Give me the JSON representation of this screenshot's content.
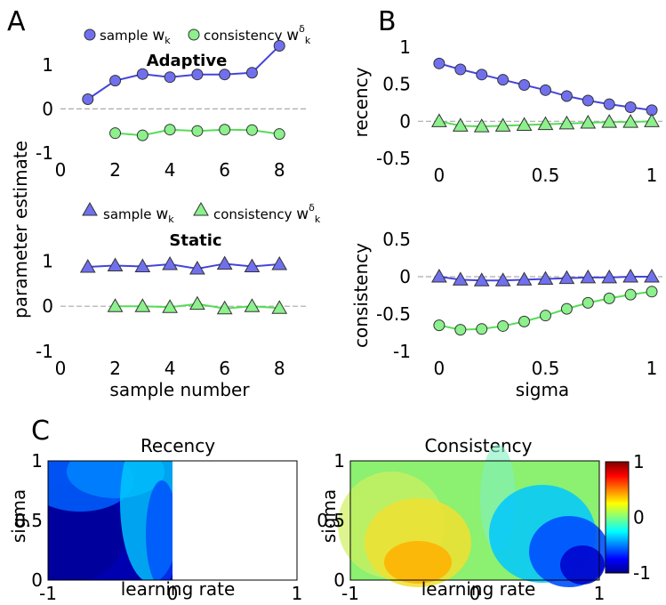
{
  "panel_letters": {
    "a": "A",
    "b": "B",
    "c": "C"
  },
  "legend": {
    "sample": "sample",
    "consistency": "consistency",
    "w_sym": "w",
    "k_sub": "k",
    "delta_sup": "δ"
  },
  "colors": {
    "sample_fill": "#7070ef",
    "sample_line": "#4444dd",
    "consistency_fill": "#8cf08c",
    "consistency_line": "#55dd55",
    "marker_edge": "#333333",
    "zero_line": "#aaaaaa"
  },
  "chart_data": [
    {
      "id": "A_top",
      "type": "line",
      "title": "Adaptive",
      "ylim": [
        -1,
        1.5
      ],
      "xlim": [
        0,
        9
      ],
      "yticks": [
        "-1",
        "0",
        "1"
      ],
      "xticks": [
        "0",
        "2",
        "4",
        "6",
        "8"
      ],
      "marker": "circle",
      "series": [
        {
          "name": "sample wk",
          "x": [
            1,
            2,
            3,
            4,
            5,
            6,
            7,
            8
          ],
          "y": [
            0.22,
            0.64,
            0.79,
            0.72,
            0.78,
            0.78,
            0.82,
            1.43
          ]
        },
        {
          "name": "consistency wδk",
          "x": [
            2,
            3,
            4,
            5,
            6,
            7,
            8
          ],
          "y": [
            -0.55,
            -0.6,
            -0.47,
            -0.5,
            -0.47,
            -0.48,
            -0.57
          ]
        }
      ]
    },
    {
      "id": "A_bottom",
      "type": "line",
      "title": "Static",
      "ylabel": "parameter estimate",
      "xlabel": "sample number",
      "ylim": [
        -1,
        1.5
      ],
      "xlim": [
        0,
        9
      ],
      "yticks": [
        "-1",
        "0",
        "1"
      ],
      "xticks": [
        "0",
        "2",
        "4",
        "6",
        "8"
      ],
      "marker": "triangle",
      "series": [
        {
          "name": "sample wk",
          "x": [
            1,
            2,
            3,
            4,
            5,
            6,
            7,
            8
          ],
          "y": [
            0.87,
            0.9,
            0.88,
            0.93,
            0.83,
            0.94,
            0.88,
            0.93
          ]
        },
        {
          "name": "consistency wδk",
          "x": [
            2,
            3,
            4,
            5,
            6,
            7,
            8
          ],
          "y": [
            0.0,
            0.0,
            -0.02,
            0.05,
            -0.05,
            0.0,
            -0.04
          ]
        }
      ]
    },
    {
      "id": "B_top",
      "type": "line",
      "ylabel": "recency",
      "xlim": [
        -0.1,
        1.05
      ],
      "ylim": [
        -0.5,
        1.0
      ],
      "yticks": [
        "-0.5",
        "0",
        "0.5",
        "1"
      ],
      "xticks": [
        "0",
        "0.5",
        "1"
      ],
      "series": [
        {
          "marker": "circle",
          "x": [
            0,
            0.1,
            0.2,
            0.3,
            0.4,
            0.5,
            0.6,
            0.7,
            0.8,
            0.9,
            1.0
          ],
          "y": [
            0.78,
            0.7,
            0.63,
            0.56,
            0.49,
            0.42,
            0.34,
            0.28,
            0.23,
            0.19,
            0.15
          ]
        },
        {
          "marker": "triangle",
          "x": [
            0,
            0.1,
            0.2,
            0.3,
            0.4,
            0.5,
            0.6,
            0.7,
            0.8,
            0.9,
            1.0
          ],
          "y": [
            0.0,
            -0.06,
            -0.07,
            -0.06,
            -0.05,
            -0.04,
            -0.03,
            -0.02,
            -0.01,
            -0.01,
            0.0
          ]
        }
      ]
    },
    {
      "id": "B_bottom",
      "type": "line",
      "ylabel": "consistency",
      "xlabel": "sigma",
      "xlim": [
        -0.1,
        1.05
      ],
      "ylim": [
        -1.0,
        0.5
      ],
      "yticks": [
        "-1",
        "-0.5",
        "0",
        "0.5"
      ],
      "xticks": [
        "0",
        "0.5",
        "1"
      ],
      "series": [
        {
          "marker": "triangle",
          "x": [
            0,
            0.1,
            0.2,
            0.3,
            0.4,
            0.5,
            0.6,
            0.7,
            0.8,
            0.9,
            1.0
          ],
          "y": [
            0.0,
            -0.04,
            -0.05,
            -0.05,
            -0.04,
            -0.03,
            -0.02,
            -0.01,
            -0.01,
            0.0,
            0.0
          ]
        },
        {
          "marker": "circle",
          "x": [
            0,
            0.1,
            0.2,
            0.3,
            0.4,
            0.5,
            0.6,
            0.7,
            0.8,
            0.9,
            1.0
          ],
          "y": [
            -0.65,
            -0.71,
            -0.7,
            -0.66,
            -0.6,
            -0.52,
            -0.43,
            -0.35,
            -0.29,
            -0.24,
            -0.2
          ]
        }
      ]
    },
    {
      "id": "C_left",
      "type": "heatmap",
      "title": "Recency",
      "xlabel": "learning rate",
      "ylabel": "sigma",
      "xlim": [
        -1,
        1
      ],
      "ylim": [
        0,
        1
      ],
      "xticks": [
        "-1",
        "0",
        "1"
      ],
      "yticks": [
        "0",
        "0.5",
        "1"
      ]
    },
    {
      "id": "C_right",
      "type": "heatmap",
      "title": "Consistency",
      "xlabel": "learning rate",
      "ylabel": "sigma",
      "xlim": [
        -1,
        1
      ],
      "ylim": [
        0,
        1
      ],
      "xticks": [
        "-1",
        "0",
        "1"
      ],
      "yticks": [
        "0",
        "0.5",
        "1"
      ]
    },
    {
      "id": "C_colorbar",
      "type": "colorbar",
      "range": [
        -1,
        1
      ],
      "ticks": [
        "1",
        "0",
        "-1"
      ],
      "colormap": "jet"
    }
  ]
}
